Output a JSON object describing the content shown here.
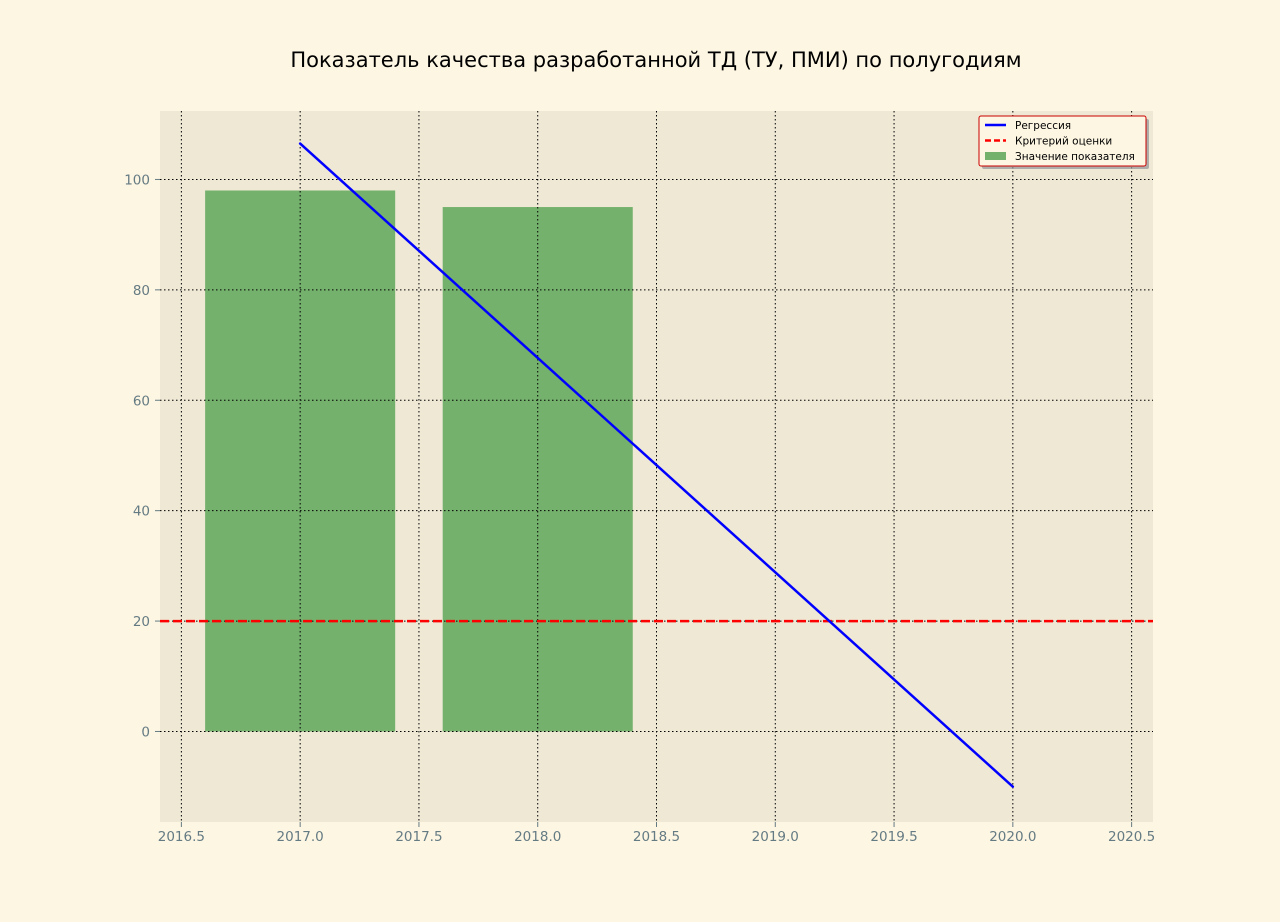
{
  "colors": {
    "figure_bg": "#fdf6e3",
    "axes_bg": "#eee8d5",
    "bar": "#74b16c",
    "regression": "#0000ff",
    "criterion": "#ff0000",
    "grid": "#000000",
    "tick_text": "#657b83",
    "legend_edge": "#cc0000",
    "legend_face": "#fdf6e3"
  },
  "chart_data": {
    "type": "bar",
    "title": "Показатель качества разработанной ТД (ТУ, ПМИ) по полугодиям",
    "xlabel": "",
    "ylabel": "",
    "xlim": [
      2016.41,
      2020.59
    ],
    "ylim": [
      -16.4,
      112.4
    ],
    "grid": true,
    "legend_position": "top-right",
    "x_ticks": [
      2016.5,
      2017.0,
      2017.5,
      2018.0,
      2018.5,
      2019.0,
      2019.5,
      2020.0,
      2020.5
    ],
    "x_tick_labels": [
      "2016.5",
      "2017.0",
      "2017.5",
      "2018.0",
      "2018.5",
      "2019.0",
      "2019.5",
      "2020.0",
      "2020.5"
    ],
    "y_ticks": [
      0,
      20,
      40,
      60,
      80,
      100
    ],
    "y_tick_labels": [
      "0",
      "20",
      "40",
      "60",
      "80",
      "100"
    ],
    "bars": {
      "name": "Значение показателя",
      "x": [
        2017.0,
        2018.0
      ],
      "values": [
        98,
        95
      ],
      "width": 0.8
    },
    "regression": {
      "name": "Регрессия",
      "x": [
        2017.0,
        2020.0
      ],
      "y": [
        106.5,
        -10
      ]
    },
    "criterion": {
      "name": "Критерий оценки",
      "y": 20
    },
    "legend": [
      "Регрессия",
      "Критерий оценки",
      "Значение показателя"
    ]
  }
}
